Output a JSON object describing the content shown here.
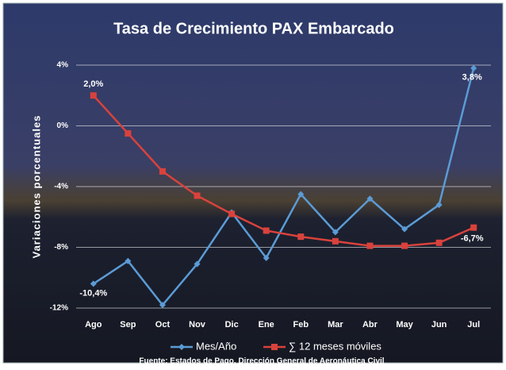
{
  "chart_data": {
    "type": "line",
    "title": "Tasa de Crecimiento PAX Embarcado",
    "y_label": "Variaciones porcentuales",
    "source": "Fuente: Estados de Pago, Dirección General de Aeronáutica Civil",
    "categories": [
      "Ago",
      "Sep",
      "Oct",
      "Nov",
      "Dic",
      "Ene",
      "Feb",
      "Mar",
      "Abr",
      "May",
      "Jun",
      "Jul"
    ],
    "series": [
      {
        "name": "Mes/Año",
        "color": "#5b9bd5",
        "marker": "diamond",
        "values": [
          -10.4,
          -8.9,
          -11.8,
          -9.1,
          -5.7,
          -8.7,
          -4.5,
          -7.0,
          -4.8,
          -6.8,
          -5.2,
          3.8
        ],
        "value_labels": [
          "-10,4%",
          null,
          null,
          null,
          null,
          null,
          null,
          null,
          null,
          null,
          null,
          "3,8%"
        ]
      },
      {
        "name": "∑ 12 meses móviles",
        "color": "#d9423c",
        "marker": "square",
        "values": [
          2.0,
          -0.5,
          -3.0,
          -4.6,
          -5.8,
          -6.9,
          -7.3,
          -7.6,
          -7.9,
          -7.9,
          -7.7,
          -6.7
        ],
        "value_labels": [
          "2,0%",
          null,
          null,
          null,
          null,
          null,
          null,
          null,
          null,
          null,
          null,
          "-6,7%"
        ]
      }
    ],
    "ylim": [
      -12,
      4
    ],
    "yticks": [
      {
        "value": 4,
        "label": "4%"
      },
      {
        "value": 0,
        "label": "0%"
      },
      {
        "value": -4,
        "label": "-4%"
      },
      {
        "value": -8,
        "label": "-8%"
      },
      {
        "value": -12,
        "label": "-12%"
      }
    ],
    "grid": true,
    "legend": "bottom"
  }
}
